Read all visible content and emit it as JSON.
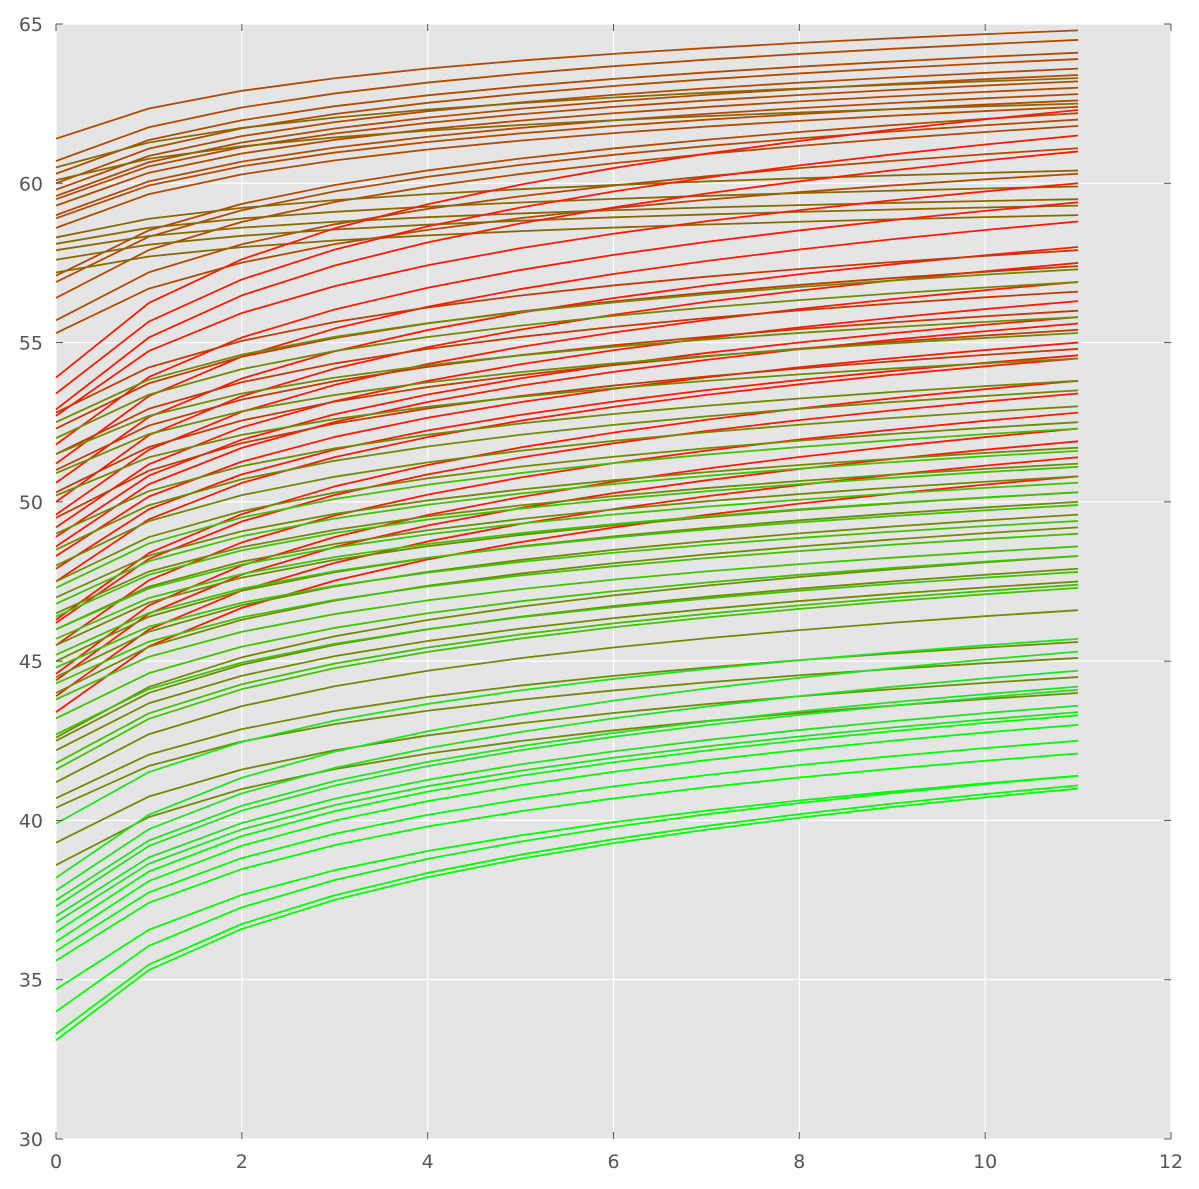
{
  "chart_data": {
    "type": "line",
    "title": "",
    "xlabel": "",
    "ylabel": "",
    "xlim": [
      0,
      12
    ],
    "ylim": [
      30,
      65
    ],
    "grid": true,
    "legend": "none",
    "x": [
      0,
      1,
      2,
      3,
      4,
      5,
      6,
      7,
      8,
      9,
      10,
      11
    ],
    "x_ticks": [
      "0",
      "2",
      "4",
      "6",
      "8",
      "10",
      "12"
    ],
    "y_ticks": [
      "30",
      "35",
      "40",
      "45",
      "50",
      "55",
      "60",
      "65"
    ],
    "colors": {
      "plot_background": "#e5e5e5",
      "grid": "#ffffff",
      "tick_label": "#555555",
      "group_red": "#ff1a00",
      "group_brown": "#b34a00",
      "group_olive": "#6f8c00",
      "group_green": "#00ff00"
    },
    "groups": [
      {
        "color": "#b34a00",
        "lines": [
          {
            "start": 61.4,
            "end": 64.8
          },
          {
            "start": 60.7,
            "end": 64.5
          },
          {
            "start": 60.3,
            "end": 64.1
          },
          {
            "start": 60.0,
            "end": 63.9
          },
          {
            "start": 59.8,
            "end": 63.6
          },
          {
            "start": 59.6,
            "end": 63.4
          },
          {
            "start": 59.5,
            "end": 63.2
          },
          {
            "start": 59.3,
            "end": 63.0
          },
          {
            "start": 59.0,
            "end": 62.8
          },
          {
            "start": 58.9,
            "end": 62.6
          },
          {
            "start": 58.6,
            "end": 62.4
          },
          {
            "start": 57.1,
            "end": 62.2
          },
          {
            "start": 56.9,
            "end": 62.0
          },
          {
            "start": 56.4,
            "end": 61.8
          },
          {
            "start": 55.7,
            "end": 61.1
          },
          {
            "start": 55.3,
            "end": 60.3
          }
        ]
      },
      {
        "color": "#8a6a00",
        "lines": [
          {
            "start": 60.5,
            "end": 63.3
          },
          {
            "start": 60.1,
            "end": 62.5
          },
          {
            "start": 58.3,
            "end": 60.4
          },
          {
            "start": 58.1,
            "end": 59.9
          },
          {
            "start": 57.9,
            "end": 59.5
          },
          {
            "start": 57.6,
            "end": 59.3
          },
          {
            "start": 57.2,
            "end": 59.0
          }
        ]
      },
      {
        "color": "#ff1a00",
        "lines": [
          {
            "start": 53.9,
            "end": 62.3
          },
          {
            "start": 53.4,
            "end": 61.5
          },
          {
            "start": 52.9,
            "end": 61.0
          },
          {
            "start": 52.7,
            "end": 60.0
          },
          {
            "start": 51.8,
            "end": 59.4
          },
          {
            "start": 51.2,
            "end": 58.8
          },
          {
            "start": 50.6,
            "end": 58.0
          },
          {
            "start": 50.0,
            "end": 57.5
          },
          {
            "start": 49.6,
            "end": 56.9
          },
          {
            "start": 49.2,
            "end": 56.3
          },
          {
            "start": 48.9,
            "end": 55.8
          },
          {
            "start": 48.6,
            "end": 55.6
          },
          {
            "start": 48.3,
            "end": 55.0
          },
          {
            "start": 47.9,
            "end": 54.6
          },
          {
            "start": 47.5,
            "end": 54.5
          },
          {
            "start": 46.3,
            "end": 53.8
          },
          {
            "start": 46.2,
            "end": 53.4
          },
          {
            "start": 45.5,
            "end": 52.8
          },
          {
            "start": 44.6,
            "end": 52.3
          },
          {
            "start": 44.4,
            "end": 51.9
          },
          {
            "start": 43.9,
            "end": 51.4
          },
          {
            "start": 43.4,
            "end": 50.8
          }
        ]
      },
      {
        "color": "#c43a00",
        "lines": [
          {
            "start": 52.8,
            "end": 57.9
          },
          {
            "start": 52.3,
            "end": 57.4
          },
          {
            "start": 51.5,
            "end": 56.6
          },
          {
            "start": 51.0,
            "end": 56.0
          },
          {
            "start": 50.3,
            "end": 55.4
          },
          {
            "start": 49.5,
            "end": 54.8
          }
        ]
      },
      {
        "color": "#6f8c00",
        "lines": [
          {
            "start": 52.5,
            "end": 57.3
          },
          {
            "start": 52.0,
            "end": 56.9
          },
          {
            "start": 51.5,
            "end": 55.8
          },
          {
            "start": 50.9,
            "end": 55.3
          },
          {
            "start": 50.2,
            "end": 54.5
          },
          {
            "start": 49.0,
            "end": 53.8
          },
          {
            "start": 48.5,
            "end": 53.5
          },
          {
            "start": 48.0,
            "end": 53.0
          },
          {
            "start": 47.5,
            "end": 52.5
          },
          {
            "start": 47.0,
            "end": 51.7
          },
          {
            "start": 46.5,
            "end": 51.2
          },
          {
            "start": 46.0,
            "end": 50.8
          },
          {
            "start": 45.5,
            "end": 50.3
          },
          {
            "start": 45.0,
            "end": 50.0
          },
          {
            "start": 44.5,
            "end": 49.6
          },
          {
            "start": 44.0,
            "end": 49.2
          },
          {
            "start": 42.6,
            "end": 48.3
          },
          {
            "start": 42.5,
            "end": 47.9
          },
          {
            "start": 42.2,
            "end": 47.5
          },
          {
            "start": 41.2,
            "end": 46.6
          },
          {
            "start": 40.7,
            "end": 45.6
          },
          {
            "start": 40.4,
            "end": 45.1
          },
          {
            "start": 39.3,
            "end": 44.5
          },
          {
            "start": 38.6,
            "end": 44.0
          }
        ]
      },
      {
        "color": "#3fc400",
        "lines": [
          {
            "start": 47.3,
            "end": 52.3
          },
          {
            "start": 46.8,
            "end": 51.6
          },
          {
            "start": 46.4,
            "end": 51.1
          },
          {
            "start": 46.0,
            "end": 50.6
          },
          {
            "start": 45.7,
            "end": 50.3
          },
          {
            "start": 45.2,
            "end": 49.9
          },
          {
            "start": 44.8,
            "end": 49.4
          },
          {
            "start": 44.3,
            "end": 49.0
          },
          {
            "start": 43.8,
            "end": 48.6
          },
          {
            "start": 43.2,
            "end": 48.3
          },
          {
            "start": 42.7,
            "end": 47.8
          },
          {
            "start": 41.8,
            "end": 47.4
          },
          {
            "start": 41.6,
            "end": 47.3
          }
        ]
      },
      {
        "color": "#1ee61e",
        "lines": [
          {
            "start": 39.9,
            "end": 45.7
          },
          {
            "start": 38.2,
            "end": 45.3
          },
          {
            "start": 37.8,
            "end": 44.7
          },
          {
            "start": 37.5,
            "end": 44.2
          },
          {
            "start": 37.3,
            "end": 44.1
          },
          {
            "start": 37.0,
            "end": 43.6
          },
          {
            "start": 36.8,
            "end": 43.4
          }
        ]
      },
      {
        "color": "#00ff00",
        "lines": [
          {
            "start": 36.5,
            "end": 43.3
          },
          {
            "start": 36.2,
            "end": 43.0
          },
          {
            "start": 35.9,
            "end": 42.5
          },
          {
            "start": 35.6,
            "end": 42.1
          },
          {
            "start": 34.7,
            "end": 41.4
          },
          {
            "start": 34.0,
            "end": 41.4
          },
          {
            "start": 33.3,
            "end": 41.1
          },
          {
            "start": 33.1,
            "end": 41.0
          }
        ]
      }
    ]
  }
}
